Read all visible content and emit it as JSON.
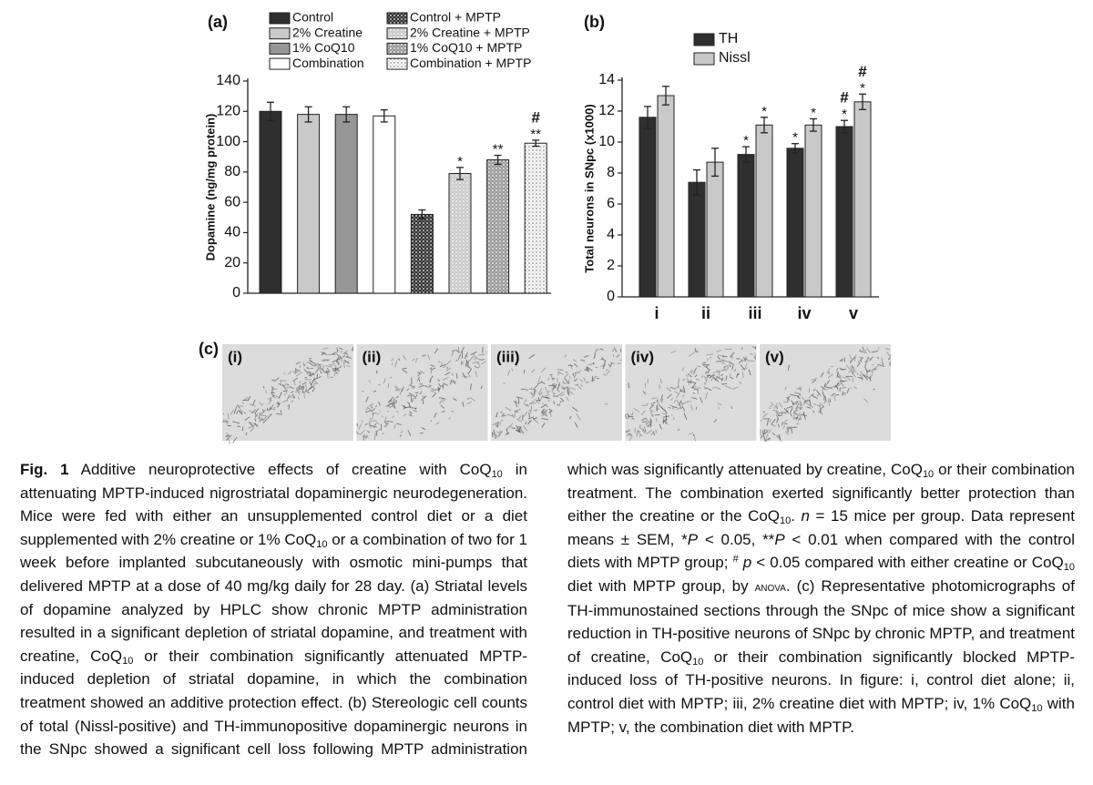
{
  "chart_data": [
    {
      "type": "bar",
      "label": "(a)",
      "ylabel": "Dopamine (ng/mg protein)",
      "categories": [
        "Control",
        "2% Creatine",
        "1% CoQ10",
        "Combination",
        "Control + MPTP",
        "2% Creatine + MPTP",
        "1% CoQ10 + MPTP",
        "Combination + MPTP"
      ],
      "values": [
        120,
        118,
        118,
        117,
        52,
        79,
        88,
        99
      ],
      "errors": [
        6,
        5,
        5,
        4,
        3,
        4,
        3,
        2
      ],
      "colors": [
        "#2f2f2f",
        "#c9c9c9",
        "#979797",
        "#ffffff",
        "#2f2f2f",
        "#c9c9c9",
        "#979797",
        "#ffffff"
      ],
      "hatched": [
        false,
        false,
        false,
        false,
        true,
        true,
        true,
        true
      ],
      "sig": [
        null,
        null,
        null,
        null,
        null,
        "*",
        "**",
        "**"
      ],
      "hash": [
        null,
        null,
        null,
        null,
        null,
        null,
        null,
        "#"
      ],
      "ylim": [
        0,
        140
      ],
      "yticks": [
        0,
        20,
        40,
        60,
        80,
        100,
        120,
        140
      ]
    },
    {
      "type": "bar",
      "label": "(b)",
      "ylabel": "Total neurons in SNpc (x1000)",
      "categories": [
        "i",
        "ii",
        "iii",
        "iv",
        "v"
      ],
      "series": [
        {
          "name": "TH",
          "color": "#2f2f2f",
          "values": [
            11.6,
            7.4,
            9.2,
            9.6,
            11.0
          ],
          "errors": [
            0.7,
            0.8,
            0.5,
            0.3,
            0.4
          ],
          "sig": [
            null,
            null,
            "*",
            "*",
            "*"
          ],
          "hash": [
            null,
            null,
            null,
            null,
            "#"
          ]
        },
        {
          "name": "Nissl",
          "color": "#c9c9c9",
          "values": [
            13.0,
            8.7,
            11.1,
            11.1,
            12.6
          ],
          "errors": [
            0.6,
            0.9,
            0.5,
            0.4,
            0.5
          ],
          "sig": [
            null,
            null,
            "*",
            "*",
            "*"
          ],
          "hash": [
            null,
            null,
            null,
            null,
            "#"
          ]
        }
      ],
      "ylim": [
        0,
        14
      ],
      "yticks": [
        0,
        2,
        4,
        6,
        8,
        10,
        12,
        14
      ]
    }
  ],
  "micrographs": {
    "label": "(c)",
    "panels": [
      "(i)",
      "(ii)",
      "(iii)",
      "(iv)",
      "(v)"
    ]
  },
  "caption": {
    "runs": [
      {
        "text": "Fig. 1",
        "style": "b"
      },
      {
        "text": " Additive neuroprotective effects of creatine with CoQ"
      },
      {
        "text": "10",
        "style": "sub"
      },
      {
        "text": " in attenuating MPTP-induced nigrostriatal dopaminergic neurodegeneration. Mice were fed with either an unsupplemented control diet or a diet supplemented with 2% creatine or 1% CoQ"
      },
      {
        "text": "10",
        "style": "sub"
      },
      {
        "text": " or a combination of two for 1 week before implanted subcutaneously with osmotic mini-pumps that delivered MPTP at a dose of 40 mg/kg daily for 28 day. (a) Striatal levels of dopamine analyzed by HPLC show chronic MPTP administration resulted in a significant depletion of striatal dopamine, and treatment with creatine, CoQ"
      },
      {
        "text": "10",
        "style": "sub"
      },
      {
        "text": " or their combination significantly attenuated MPTP-induced depletion of striatal dopamine, in which the combination treatment showed an additive protection effect. (b) Stereologic cell counts of total (Nissl-positive) and TH-immunopositive dopaminergic neurons in the SNpc showed a significant cell loss following MPTP administration which was significantly attenuated by creatine, CoQ"
      },
      {
        "text": "10",
        "style": "sub"
      },
      {
        "text": " or their combination treatment. The combination exerted significantly better protection than either the creatine or the CoQ"
      },
      {
        "text": "10",
        "style": "sub"
      },
      {
        "text": ". "
      },
      {
        "text": "n",
        "style": "i"
      },
      {
        "text": " = 15 mice per group. Data represent means ± SEM, *"
      },
      {
        "text": "P",
        "style": "i"
      },
      {
        "text": " < 0.05, **"
      },
      {
        "text": "P",
        "style": "i"
      },
      {
        "text": " < 0.01 when compared with the control diets with MPTP group; "
      },
      {
        "text": "#",
        "style": "sup"
      },
      {
        "text": " "
      },
      {
        "text": "p",
        "style": "i"
      },
      {
        "text": " < 0.05 compared with either creatine or CoQ"
      },
      {
        "text": "10",
        "style": "sub"
      },
      {
        "text": " diet with MPTP group, by "
      },
      {
        "text": "anova",
        "style": "sc"
      },
      {
        "text": ". (c) Representative photomicrographs of TH-immunostained sections through the SNpc of mice show a significant reduction in TH-positive neurons of SNpc by chronic MPTP, and treatment of creatine, CoQ"
      },
      {
        "text": "10",
        "style": "sub"
      },
      {
        "text": " or their combination significantly blocked MPTP-induced loss of TH-positive neurons. In figure: i, control diet alone; ii, control diet with MPTP; iii, 2% creatine diet with MPTP; iv, 1% CoQ"
      },
      {
        "text": "10",
        "style": "sub"
      },
      {
        "text": " with MPTP; v, the combination diet with MPTP."
      }
    ]
  }
}
